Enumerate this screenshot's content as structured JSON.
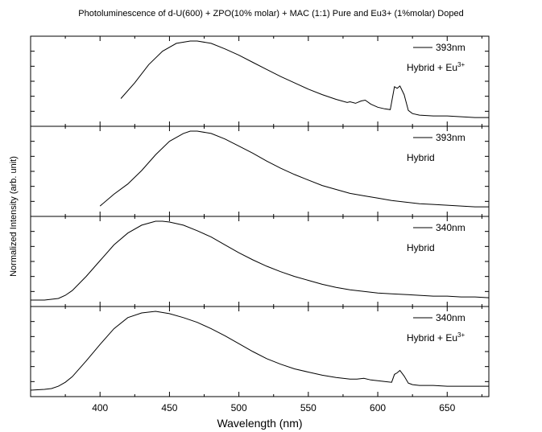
{
  "chart_data": {
    "type": "line",
    "title": "Photoluminescence of d-U(600) + ZPO(10% molar) + MAC (1:1) Pure and Eu3+ (1%molar) Doped",
    "xlabel": "Wavelength (nm)",
    "ylabel": "Normalized Intensity (arb. unit)",
    "xlim": [
      350,
      680
    ],
    "xticks": [
      400,
      450,
      500,
      550,
      600,
      650
    ],
    "grid": false,
    "panels": [
      {
        "legend": "393nm",
        "label": "Hybrid + Eu",
        "label_sup": "3+",
        "x": [
          415,
          425,
          435,
          445,
          455,
          465,
          470,
          480,
          490,
          500,
          510,
          520,
          530,
          540,
          550,
          560,
          570,
          578,
          580,
          584,
          588,
          591,
          595,
          600,
          605,
          609,
          612,
          614,
          616,
          619,
          622,
          625,
          630,
          640,
          650,
          660,
          670,
          680
        ],
        "y": [
          0.27,
          0.47,
          0.7,
          0.87,
          0.97,
          1.0,
          1.0,
          0.97,
          0.9,
          0.82,
          0.73,
          0.64,
          0.55,
          0.47,
          0.39,
          0.32,
          0.26,
          0.22,
          0.23,
          0.21,
          0.24,
          0.25,
          0.2,
          0.16,
          0.14,
          0.13,
          0.42,
          0.4,
          0.43,
          0.32,
          0.12,
          0.08,
          0.06,
          0.05,
          0.05,
          0.04,
          0.03,
          0.03
        ]
      },
      {
        "legend": "393nm",
        "label": "Hybrid",
        "label_sup": "",
        "x": [
          400,
          410,
          420,
          430,
          440,
          450,
          460,
          465,
          470,
          480,
          490,
          500,
          510,
          520,
          530,
          540,
          550,
          560,
          570,
          580,
          590,
          600,
          610,
          620,
          630,
          640,
          650,
          660,
          670,
          680
        ],
        "y": [
          0.05,
          0.2,
          0.33,
          0.5,
          0.7,
          0.87,
          0.97,
          1.0,
          1.0,
          0.97,
          0.9,
          0.81,
          0.72,
          0.62,
          0.53,
          0.45,
          0.38,
          0.31,
          0.26,
          0.21,
          0.18,
          0.15,
          0.12,
          0.1,
          0.08,
          0.07,
          0.06,
          0.05,
          0.04,
          0.04
        ]
      },
      {
        "legend": "340nm",
        "label": "Hybrid",
        "label_sup": "",
        "x": [
          350,
          360,
          365,
          370,
          375,
          380,
          390,
          400,
          410,
          420,
          430,
          440,
          445,
          450,
          460,
          470,
          480,
          490,
          500,
          510,
          520,
          530,
          540,
          550,
          560,
          570,
          580,
          590,
          600,
          610,
          620,
          630,
          640,
          650,
          660,
          670,
          680
        ],
        "y": [
          0.0,
          0.0,
          0.01,
          0.02,
          0.06,
          0.12,
          0.3,
          0.5,
          0.7,
          0.85,
          0.95,
          1.0,
          1.0,
          0.99,
          0.95,
          0.88,
          0.8,
          0.7,
          0.6,
          0.51,
          0.43,
          0.36,
          0.3,
          0.25,
          0.2,
          0.16,
          0.13,
          0.11,
          0.09,
          0.08,
          0.07,
          0.06,
          0.05,
          0.05,
          0.04,
          0.04,
          0.03
        ]
      },
      {
        "legend": "340nm",
        "label": "Hybrid + Eu",
        "label_sup": "3+",
        "x": [
          350,
          360,
          365,
          370,
          375,
          380,
          390,
          400,
          410,
          420,
          430,
          440,
          450,
          460,
          470,
          480,
          490,
          500,
          510,
          520,
          530,
          540,
          550,
          560,
          570,
          580,
          585,
          590,
          595,
          600,
          605,
          610,
          612,
          614,
          616,
          619,
          622,
          625,
          630,
          640,
          650,
          660,
          670,
          680
        ],
        "y": [
          0.0,
          0.01,
          0.02,
          0.05,
          0.1,
          0.17,
          0.37,
          0.58,
          0.78,
          0.92,
          0.98,
          1.0,
          0.97,
          0.92,
          0.86,
          0.78,
          0.69,
          0.59,
          0.49,
          0.4,
          0.33,
          0.27,
          0.23,
          0.19,
          0.16,
          0.14,
          0.14,
          0.15,
          0.13,
          0.12,
          0.11,
          0.1,
          0.2,
          0.22,
          0.25,
          0.18,
          0.09,
          0.07,
          0.06,
          0.06,
          0.05,
          0.05,
          0.05,
          0.05
        ]
      }
    ]
  }
}
